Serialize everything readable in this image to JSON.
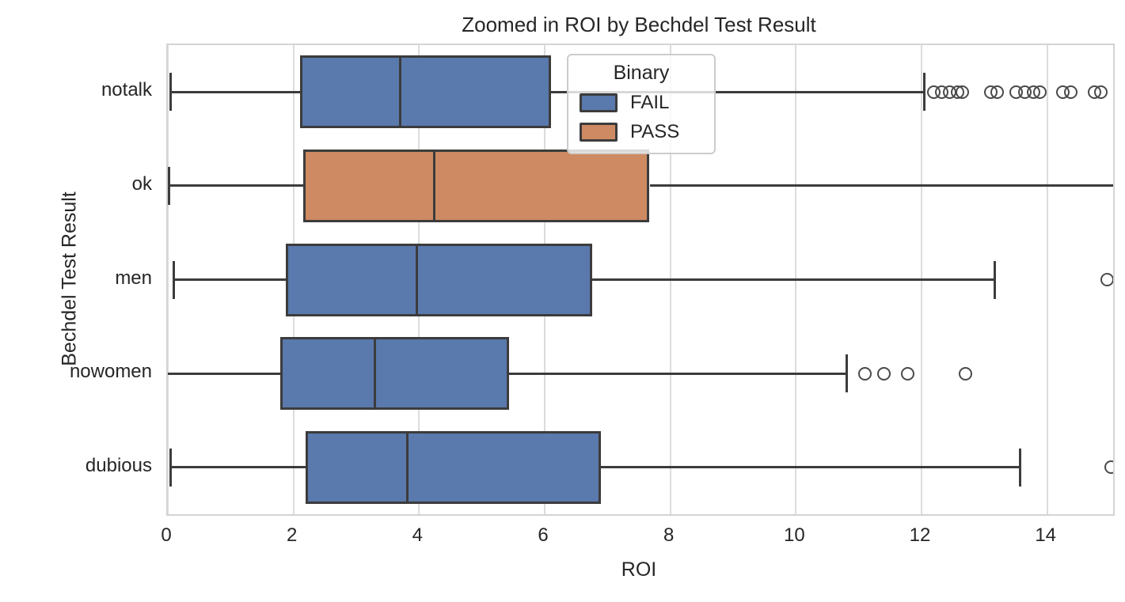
{
  "colors": {
    "fail": "#5a79ad",
    "pass": "#ce8a63",
    "box_edge": "#3c3c3c",
    "grid": "#dcdcdc",
    "spine": "#d4d4d4",
    "text": "#262626"
  },
  "chart_data": {
    "type": "boxplot",
    "orientation": "horizontal",
    "title": "Zoomed in ROI by Bechdel Test Result",
    "xlabel": "ROI",
    "ylabel": "Bechdel Test Result",
    "xlim": [
      0,
      15.05
    ],
    "xticks": [
      0,
      2,
      4,
      6,
      8,
      10,
      12,
      14
    ],
    "grid": "vertical-only",
    "categories": [
      "notalk",
      "ok",
      "men",
      "nowomen",
      "dubious"
    ],
    "legend": {
      "title": "Binary",
      "position": "upper center-left inside axes",
      "entries": [
        {
          "label": "FAIL",
          "color_key": "fail"
        },
        {
          "label": "PASS",
          "color_key": "pass"
        }
      ]
    },
    "boxes": [
      {
        "category": "notalk",
        "group": "FAIL",
        "whisker_low": 0.04,
        "q1": 2.11,
        "median": 3.7,
        "q3": 6.1,
        "whisker_high": 12.05,
        "cap_low": true,
        "cap_high": true,
        "outliers": [
          12.2,
          12.32,
          12.45,
          12.57,
          12.65,
          13.1,
          13.2,
          13.5,
          13.65,
          13.78,
          13.88,
          14.25,
          14.37,
          14.75,
          14.85
        ]
      },
      {
        "category": "ok",
        "group": "PASS",
        "whisker_low": 0.02,
        "q1": 2.15,
        "median": 4.24,
        "q3": 7.67,
        "whisker_high": 15.05,
        "cap_low": true,
        "cap_high": false,
        "outliers": []
      },
      {
        "category": "men",
        "group": "FAIL",
        "whisker_low": 0.1,
        "q1": 1.88,
        "median": 3.96,
        "q3": 6.75,
        "whisker_high": 13.16,
        "cap_low": true,
        "cap_high": true,
        "outliers": [
          14.95
        ]
      },
      {
        "category": "nowomen",
        "group": "FAIL",
        "whisker_low": -0.05,
        "q1": 1.79,
        "median": 3.29,
        "q3": 5.43,
        "whisker_high": 10.81,
        "cap_low": true,
        "cap_high": true,
        "outliers": [
          11.1,
          11.4,
          11.78,
          12.7
        ]
      },
      {
        "category": "dubious",
        "group": "FAIL",
        "whisker_low": 0.04,
        "q1": 2.19,
        "median": 3.81,
        "q3": 6.9,
        "whisker_high": 13.57,
        "cap_low": true,
        "cap_high": true,
        "outliers": [
          15.02
        ]
      }
    ]
  }
}
